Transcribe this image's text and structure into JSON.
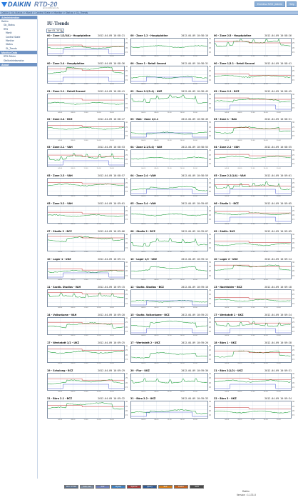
{
  "header": {
    "logo_text": "DAIKIN",
    "product": "RTD-20",
    "logo_sub": "airconditioners.de",
    "user_button": "Enerdisc NSS | Admin",
    "help_button": "Help"
  },
  "breadcrumb": "Daikin | Gb_Status > Monit > Control State > Monitor > Status > GL_Trends",
  "sidebar": {
    "sections": [
      {
        "title": "Administration",
        "items": [
          {
            "label": "Daikin",
            "level": 0
          },
          {
            "label": "Gb_Status",
            "level": 1
          },
          {
            "label": "RTD",
            "level": 1
          },
          {
            "label": "Monit",
            "level": 2
          },
          {
            "label": "Control State",
            "level": 2
          },
          {
            "label": "Monitor",
            "level": 2
          },
          {
            "label": "Status",
            "level": 2
          },
          {
            "label": "GL_Trends",
            "level": 2
          }
        ]
      },
      {
        "title": "Monitor Data",
        "items": [
          {
            "label": "RTD Zähler",
            "level": 1
          },
          {
            "label": "Stellantriebsmotor",
            "level": 1
          }
        ]
      },
      {
        "title": "About",
        "items": []
      }
    ]
  },
  "main": {
    "title": "IU-Trends",
    "range_value": "Apr 05, 2012"
  },
  "axis": {
    "y_ticks": [
      "30",
      "25",
      "20",
      "15"
    ],
    "x_ticks": [
      "04:00",
      "08:00",
      "12:00",
      "16:00",
      "20:00"
    ],
    "series_colors": {
      "temperature": "#1e9e3a",
      "setpoint": "#c02020",
      "mode": "#3a4ad0",
      "grid": "#cfd8e6"
    }
  },
  "panels": [
    {
      "title": "00 - Zone 1/2/3/4) - Hauptplatine",
      "time": "2012-04-09 10:58:21",
      "shape": 0
    },
    {
      "title": "00 - Zone 1.2 - Hauptplatine",
      "time": "2012-04-09 10:58:16",
      "shape": 1
    },
    {
      "title": "00 - Zone 2/3 - Hauptplatine",
      "time": "2012-04-09 10:58:26",
      "shape": 2
    },
    {
      "title": "00 - Zone 2.4 - Hauptplatine",
      "time": "2012-04-09 10:58:36",
      "shape": 3
    },
    {
      "title": "00 - Zone 1 - Retail Second",
      "time": "2012-04-09 10:58:31",
      "shape": 4
    },
    {
      "title": "00 - Zone 1/3.1 - Retail Second",
      "time": "2012-04-09 10:58:41",
      "shape": 5
    },
    {
      "title": "01 - Zone 2.1 - Retail Second",
      "time": "2012-04-09 10:58:41",
      "shape": 6
    },
    {
      "title": "02 - Zone 2.2/3.4) - UKZ",
      "time": "2012-04-09 10:58:43",
      "shape": 7
    },
    {
      "title": "02 - Zone 2.2 - BCZ",
      "time": "2012-04-09 10:58:45",
      "shape": 8
    },
    {
      "title": "02 - Zone 2.4 - BCZ",
      "time": "2012-04-09 10:58:47",
      "shape": 9
    },
    {
      "title": "03 - RA4 - Zone 1/2.1",
      "time": "2012-04-09 10:58:49",
      "shape": 10
    },
    {
      "title": "03 - Zone 1 - RA4",
      "time": "2012-04-09 10:58:51",
      "shape": 11
    },
    {
      "title": "03 - Zone 2.1 - VAH",
      "time": "2012-04-09 10:58:53",
      "shape": 12
    },
    {
      "title": "04 - Zone 2.1/3.4) - VAH",
      "time": "2012-04-09 10:58:55",
      "shape": 13
    },
    {
      "title": "04 - Zone 2.2 - VAH",
      "time": "2012-04-09 10:58:35",
      "shape": 14
    },
    {
      "title": "05 - Zone 2.3 - VAH",
      "time": "2012-04-09 10:58:57",
      "shape": 15
    },
    {
      "title": "04 - Zone 2.4 - VAH",
      "time": "2012-04-09 10:58:59",
      "shape": 16
    },
    {
      "title": "05 - Zone 2.2(1/4) - VAH",
      "time": "2012-04-09 10:59:01",
      "shape": 17
    },
    {
      "title": "05 - Zone 3.2 - VAH",
      "time": "2012-04-09 10:59:01",
      "shape": 18
    },
    {
      "title": "05 - Zone 3.4 - VAH",
      "time": "2012-04-09 10:59:03",
      "shape": 19
    },
    {
      "title": "06 - Studio 1 - BCZ",
      "time": "2012-04-09 10:59:05",
      "shape": 20
    },
    {
      "title": "07 - Studio 3 - BCZ",
      "time": "2012-04-09 10:59:06",
      "shape": 21
    },
    {
      "title": "08 - Studio 2 - BCZ",
      "time": "2012-04-09 10:59:07",
      "shape": 22
    },
    {
      "title": "09 - Südlic. 3&5",
      "time": "2012-04-09 10:59:09",
      "shape": 23
    },
    {
      "title": "10 - Lager 1 - UKZ",
      "time": "2012-04-09 10:59:11",
      "shape": 24
    },
    {
      "title": "10 - Lager 1/2 - UKZ",
      "time": "2012-04-09 10:59:12",
      "shape": 25
    },
    {
      "title": "10 - Lager 2 - UKZ",
      "time": "2012-04-09 10:59:14",
      "shape": 26
    },
    {
      "title": "11 - Sachb. Studios - VAH",
      "time": "2012-04-09 10:59:15",
      "shape": 27
    },
    {
      "title": "12 - Sachb. Studios - BCZ",
      "time": "2012-04-09 10:59:16",
      "shape": 28
    },
    {
      "title": "13 - Nachfolder - BCZ",
      "time": "2012-04-09 10:59:18",
      "shape": 29
    },
    {
      "title": "14 - Volksräume - VAH",
      "time": "2012-04-09 10:59:20",
      "shape": 30
    },
    {
      "title": "15 - Sachb. Volksräume - BCZ",
      "time": "2012-04-09 10:59:22",
      "shape": 31
    },
    {
      "title": "17 - Werkstatt 1 - UKZ",
      "time": "2012-04-09 10:59:24",
      "shape": 32
    },
    {
      "title": "17 - Werkstatt 1/2 - UKZ",
      "time": "2012-04-09 10:59:25",
      "shape": 33
    },
    {
      "title": "17 - Werkstatt 2 - UKZ",
      "time": "2012-04-09 10:59:26",
      "shape": 34
    },
    {
      "title": "18 - Büro 1 - UKZ",
      "time": "2012-04-09 10:59:28",
      "shape": 35
    },
    {
      "title": "19 - Schulung - BCZ",
      "time": "2012-04-09 10:59:29",
      "shape": 36
    },
    {
      "title": "20 - Flur - UKZ",
      "time": "2012-04-09 10:59:30",
      "shape": 37
    },
    {
      "title": "21 - Büro 2(1/2) - UKZ",
      "time": "2012-04-09 10:59:31",
      "shape": 38
    },
    {
      "title": "21 - Büro 2.1 - BCZ",
      "time": "2012-04-09 10:59:32",
      "shape": 39
    },
    {
      "title": "21 - Büro 2.2 - UKZ",
      "time": "2012-04-09 10:59:33",
      "shape": 40
    },
    {
      "title": "22 - Büro 3 - UKZ",
      "time": "2012-04-09 10:59:34",
      "shape": 41
    }
  ],
  "footer": {
    "badges": [
      {
        "label": "W3C XHTML",
        "color": "#5a6f8c"
      },
      {
        "label": "W3C CSS",
        "color": "#7a8aa0"
      },
      {
        "label": "PHP",
        "color": "#6c7eb7"
      },
      {
        "label": "MySQL",
        "color": "#3f7fbf"
      },
      {
        "label": "Apache",
        "color": "#a03a3a"
      },
      {
        "label": "jQuery",
        "color": "#2f5a94"
      },
      {
        "label": "RSS",
        "color": "#d07a1a"
      },
      {
        "label": "Firefox",
        "color": "#c06020"
      },
      {
        "label": "Valid",
        "color": "#4a4a4a"
      }
    ],
    "company": "Daikin",
    "version": "Version : 1.131.0"
  }
}
